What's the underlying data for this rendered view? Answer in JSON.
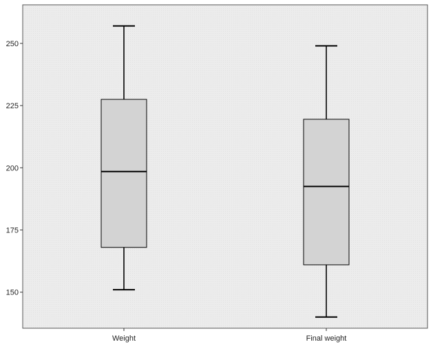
{
  "chart_data": {
    "type": "boxplot",
    "title": "",
    "xlabel": "",
    "ylabel": "",
    "categories": [
      "Weight",
      "Final weight"
    ],
    "boxes": [
      {
        "label": "Weight",
        "min": 151,
        "q1": 168,
        "median": 198.5,
        "q3": 227.5,
        "max": 257
      },
      {
        "label": "Final weight",
        "min": 140,
        "q1": 161,
        "median": 192.5,
        "q3": 219.5,
        "max": 249
      }
    ],
    "yticks": [
      150,
      175,
      200,
      225,
      250
    ],
    "ylim": [
      135.5,
      265.5
    ],
    "grid": false,
    "legend": "none",
    "colors": {
      "plot_background": "#ececec",
      "box_fill": "#d3d3d3",
      "line": "#000000"
    }
  }
}
